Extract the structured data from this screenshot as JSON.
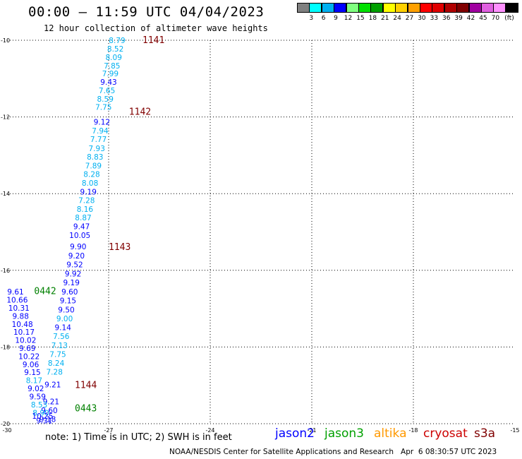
{
  "header": {
    "title": "00:00 – 11:59 UTC 04/04/2023",
    "subtitle": "12 hour collection of altimeter wave heights"
  },
  "legend": {
    "unit_label": "(ft)",
    "bins": [
      {
        "label": "",
        "color": "#808080"
      },
      {
        "label": "3",
        "color": "#00ffff"
      },
      {
        "label": "6",
        "color": "#00b0f0"
      },
      {
        "label": "9",
        "color": "#0000ff"
      },
      {
        "label": "12",
        "color": "#80ff80"
      },
      {
        "label": "15",
        "color": "#00e000"
      },
      {
        "label": "18",
        "color": "#00a000"
      },
      {
        "label": "21",
        "color": "#ffff00"
      },
      {
        "label": "24",
        "color": "#ffd000"
      },
      {
        "label": "27",
        "color": "#ffa000"
      },
      {
        "label": "30",
        "color": "#ff0000"
      },
      {
        "label": "33",
        "color": "#e00000"
      },
      {
        "label": "36",
        "color": "#b00000"
      },
      {
        "label": "39",
        "color": "#800000"
      },
      {
        "label": "42",
        "color": "#a000a0"
      },
      {
        "label": "45",
        "color": "#e060e0"
      },
      {
        "label": "70",
        "color": "#ff90ff"
      },
      {
        "label": "",
        "color": "#000000"
      }
    ]
  },
  "note": "note: 1) Time is in UTC; 2) SWH is in feet",
  "missions": [
    {
      "name": "jason2",
      "color": "#0000ff"
    },
    {
      "name": "jason3",
      "color": "#00a000"
    },
    {
      "name": "altika",
      "color": "#ff9900"
    },
    {
      "name": "cryosat",
      "color": "#cc0000"
    },
    {
      "name": "s3a",
      "color": "#800000"
    }
  ],
  "credit": "NOAA/NESDIS Center for Satellite Applications and Research   Apr  6 08:30:57 UTC 2023",
  "chart_data": {
    "type": "scatter",
    "xlim": [
      -30,
      -15
    ],
    "ylim": [
      -20,
      -10
    ],
    "x_ticks": [
      "-30",
      "-27",
      "-24",
      "-21",
      "-18",
      "-15"
    ],
    "y_ticks": [
      "-10",
      "-12",
      "-14",
      "-16",
      "-18",
      "-20"
    ],
    "grid": true,
    "pass_labels": [
      {
        "text": "1141",
        "x": -26.0,
        "y": -10.0,
        "color": "#800000"
      },
      {
        "text": "1142",
        "x": -26.4,
        "y": -11.87,
        "color": "#800000"
      },
      {
        "text": "1143",
        "x": -27.0,
        "y": -15.4,
        "color": "#800000"
      },
      {
        "text": "0442",
        "x": -29.2,
        "y": -16.55,
        "color": "#008000"
      },
      {
        "text": "1144",
        "x": -28.0,
        "y": -19.0,
        "color": "#800000"
      },
      {
        "text": "0443",
        "x": -28.0,
        "y": -19.6,
        "color": "#008000"
      }
    ],
    "points": [
      {
        "v": "8.79",
        "x": -26.75,
        "y": -10.0,
        "c": "#00b0f0"
      },
      {
        "v": "8.52",
        "x": -26.8,
        "y": -10.22,
        "c": "#00b0f0"
      },
      {
        "v": "8.09",
        "x": -26.85,
        "y": -10.44,
        "c": "#00b0f0"
      },
      {
        "v": "7.85",
        "x": -26.9,
        "y": -10.66,
        "c": "#00b0f0"
      },
      {
        "v": "7.99",
        "x": -26.95,
        "y": -10.87,
        "c": "#00b0f0"
      },
      {
        "v": "9.43",
        "x": -27.0,
        "y": -11.09,
        "c": "#0000ff"
      },
      {
        "v": "7.65",
        "x": -27.05,
        "y": -11.31,
        "c": "#00b0f0"
      },
      {
        "v": "8.59",
        "x": -27.1,
        "y": -11.53,
        "c": "#00b0f0"
      },
      {
        "v": "7.75",
        "x": -27.15,
        "y": -11.74,
        "c": "#00b0f0"
      },
      {
        "v": "9.12",
        "x": -27.2,
        "y": -12.13,
        "c": "#0000ff"
      },
      {
        "v": "7.94",
        "x": -27.25,
        "y": -12.36,
        "c": "#00b0f0"
      },
      {
        "v": "7.77",
        "x": -27.3,
        "y": -12.58,
        "c": "#00b0f0"
      },
      {
        "v": "7.93",
        "x": -27.35,
        "y": -12.82,
        "c": "#00b0f0"
      },
      {
        "v": "8.83",
        "x": -27.4,
        "y": -13.04,
        "c": "#00b0f0"
      },
      {
        "v": "7.89",
        "x": -27.45,
        "y": -13.27,
        "c": "#00b0f0"
      },
      {
        "v": "8.28",
        "x": -27.5,
        "y": -13.49,
        "c": "#00b0f0"
      },
      {
        "v": "8.08",
        "x": -27.55,
        "y": -13.72,
        "c": "#00b0f0"
      },
      {
        "v": "9.19",
        "x": -27.6,
        "y": -13.95,
        "c": "#0000ff"
      },
      {
        "v": "7.28",
        "x": -27.65,
        "y": -14.17,
        "c": "#00b0f0"
      },
      {
        "v": "8.16",
        "x": -27.7,
        "y": -14.4,
        "c": "#00b0f0"
      },
      {
        "v": "8.87",
        "x": -27.75,
        "y": -14.62,
        "c": "#00b0f0"
      },
      {
        "v": "9.47",
        "x": -27.8,
        "y": -14.85,
        "c": "#0000ff"
      },
      {
        "v": "10.05",
        "x": -27.85,
        "y": -15.08,
        "c": "#0000ff"
      },
      {
        "v": "9.90",
        "x": -27.9,
        "y": -15.38,
        "c": "#0000ff"
      },
      {
        "v": "9.20",
        "x": -27.95,
        "y": -15.62,
        "c": "#0000ff"
      },
      {
        "v": "9.52",
        "x": -28.0,
        "y": -15.85,
        "c": "#0000ff"
      },
      {
        "v": "9.92",
        "x": -28.05,
        "y": -16.09,
        "c": "#0000ff"
      },
      {
        "v": "9.19",
        "x": -28.1,
        "y": -16.32,
        "c": "#0000ff"
      },
      {
        "v": "9.60",
        "x": -28.15,
        "y": -16.56,
        "c": "#0000ff"
      },
      {
        "v": "9.15",
        "x": -28.2,
        "y": -16.79,
        "c": "#0000ff"
      },
      {
        "v": "9.50",
        "x": -28.25,
        "y": -17.03,
        "c": "#0000ff"
      },
      {
        "v": "9.00",
        "x": -28.3,
        "y": -17.26,
        "c": "#00b0f0"
      },
      {
        "v": "9.14",
        "x": -28.35,
        "y": -17.49,
        "c": "#0000ff"
      },
      {
        "v": "7.56",
        "x": -28.4,
        "y": -17.72,
        "c": "#00b0f0"
      },
      {
        "v": "7.13",
        "x": -28.45,
        "y": -17.96,
        "c": "#00b0f0"
      },
      {
        "v": "7.75",
        "x": -28.5,
        "y": -18.19,
        "c": "#00b0f0"
      },
      {
        "v": "8.24",
        "x": -28.55,
        "y": -18.42,
        "c": "#00b0f0"
      },
      {
        "v": "7.28",
        "x": -28.6,
        "y": -18.65,
        "c": "#00b0f0"
      },
      {
        "v": "9.21",
        "x": -28.65,
        "y": -18.98,
        "c": "#0000ff"
      },
      {
        "v": "9.21",
        "x": -28.7,
        "y": -19.42,
        "c": "#0000ff"
      },
      {
        "v": "9.60",
        "x": -28.75,
        "y": -19.65,
        "c": "#0000ff"
      },
      {
        "v": "9.18",
        "x": -28.8,
        "y": -19.88,
        "c": "#0000ff"
      },
      {
        "v": "9.61",
        "x": -29.75,
        "y": -16.56,
        "c": "#0000ff"
      },
      {
        "v": "10.66",
        "x": -29.7,
        "y": -16.77,
        "c": "#0000ff"
      },
      {
        "v": "10.31",
        "x": -29.65,
        "y": -16.98,
        "c": "#0000ff"
      },
      {
        "v": "9.88",
        "x": -29.6,
        "y": -17.19,
        "c": "#0000ff"
      },
      {
        "v": "10.48",
        "x": -29.55,
        "y": -17.4,
        "c": "#0000ff"
      },
      {
        "v": "10.17",
        "x": -29.5,
        "y": -17.61,
        "c": "#0000ff"
      },
      {
        "v": "10.02",
        "x": -29.45,
        "y": -17.82,
        "c": "#0000ff"
      },
      {
        "v": "9.69",
        "x": -29.4,
        "y": -18.03,
        "c": "#0000ff"
      },
      {
        "v": "10.22",
        "x": -29.35,
        "y": -18.24,
        "c": "#0000ff"
      },
      {
        "v": "9.06",
        "x": -29.3,
        "y": -18.45,
        "c": "#0000ff"
      },
      {
        "v": "9.15",
        "x": -29.25,
        "y": -18.66,
        "c": "#0000ff"
      },
      {
        "v": "8.17",
        "x": -29.2,
        "y": -18.87,
        "c": "#00b0f0"
      },
      {
        "v": "9.02",
        "x": -29.15,
        "y": -19.08,
        "c": "#0000ff"
      },
      {
        "v": "9.59",
        "x": -29.1,
        "y": -19.29,
        "c": "#0000ff"
      },
      {
        "v": "8.53",
        "x": -29.05,
        "y": -19.5,
        "c": "#00b0f0"
      },
      {
        "v": "8.90",
        "x": -29.0,
        "y": -19.71,
        "c": "#00b0f0"
      },
      {
        "v": "10.25",
        "x": -28.95,
        "y": -19.8,
        "c": "#0000ff"
      },
      {
        "v": "9.31",
        "x": -28.9,
        "y": -19.92,
        "c": "#0000ff"
      }
    ]
  }
}
